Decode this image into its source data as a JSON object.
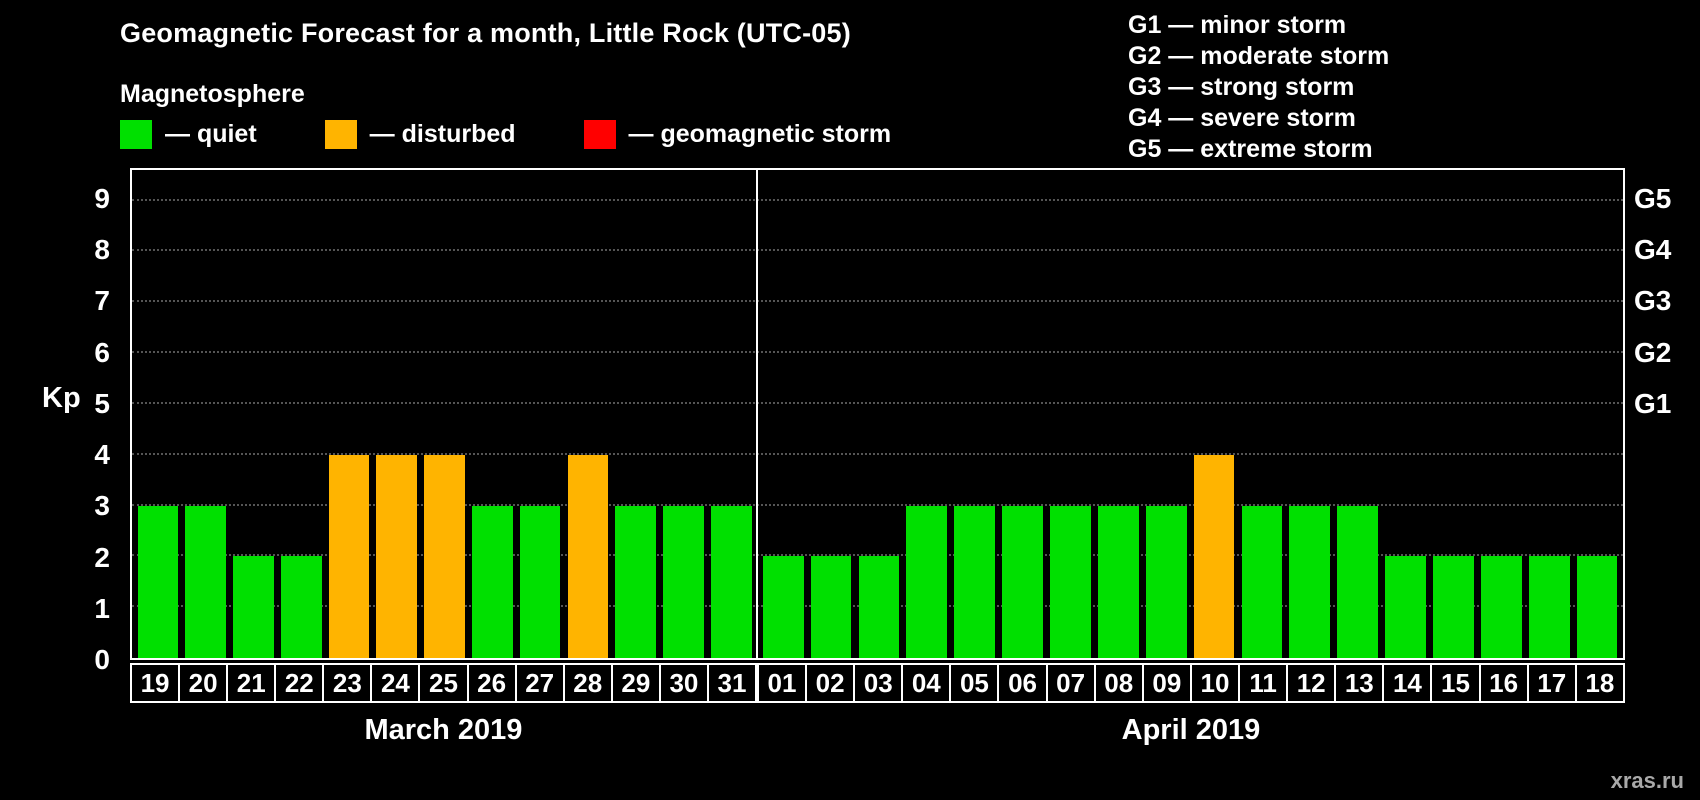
{
  "title": "Geomagnetic Forecast for a month, Little Rock (UTC-05)",
  "subtitle": "Magnetosphere",
  "ylabel": "Kp",
  "watermark": "xras.ru",
  "legend": {
    "quiet": "— quiet",
    "disturbed": "— disturbed",
    "storm": "— geomagnetic storm"
  },
  "g_legend": [
    "G1 — minor storm",
    "G2 — moderate storm",
    "G3 — strong storm",
    "G4 — severe storm",
    "G5 — extreme storm"
  ],
  "colors": {
    "quiet": "#00e000",
    "disturbed": "#ffb400",
    "storm": "#ff0000",
    "background": "#000000"
  },
  "chart_data": {
    "type": "bar",
    "title": "Geomagnetic Forecast for a month, Little Rock (UTC-05)",
    "xlabel": "",
    "ylabel": "Kp",
    "ylim": [
      0,
      9.6
    ],
    "yticks": [
      0,
      1,
      2,
      3,
      4,
      5,
      6,
      7,
      8,
      9
    ],
    "grid": true,
    "right_axis": [
      {
        "label": "G1",
        "kp": 5
      },
      {
        "label": "G2",
        "kp": 6
      },
      {
        "label": "G3",
        "kp": 7
      },
      {
        "label": "G4",
        "kp": 8
      },
      {
        "label": "G5",
        "kp": 9
      }
    ],
    "groups": [
      {
        "month": "March 2019",
        "days": [
          "19",
          "20",
          "21",
          "22",
          "23",
          "24",
          "25",
          "26",
          "27",
          "28",
          "29",
          "30",
          "31"
        ],
        "values": [
          3,
          3,
          2,
          2,
          4,
          4,
          4,
          3,
          3,
          4,
          3,
          3,
          3
        ],
        "status": [
          "quiet",
          "quiet",
          "quiet",
          "quiet",
          "disturbed",
          "disturbed",
          "disturbed",
          "quiet",
          "quiet",
          "disturbed",
          "quiet",
          "quiet",
          "quiet"
        ]
      },
      {
        "month": "April 2019",
        "days": [
          "01",
          "02",
          "03",
          "04",
          "05",
          "06",
          "07",
          "08",
          "09",
          "10",
          "11",
          "12",
          "13",
          "14",
          "15",
          "16",
          "17",
          "18"
        ],
        "values": [
          2,
          2,
          2,
          3,
          3,
          3,
          3,
          3,
          3,
          4,
          3,
          3,
          3,
          2,
          2,
          2,
          2,
          2
        ],
        "status": [
          "quiet",
          "quiet",
          "quiet",
          "quiet",
          "quiet",
          "quiet",
          "quiet",
          "quiet",
          "quiet",
          "disturbed",
          "quiet",
          "quiet",
          "quiet",
          "quiet",
          "quiet",
          "quiet",
          "quiet",
          "quiet"
        ]
      }
    ]
  }
}
